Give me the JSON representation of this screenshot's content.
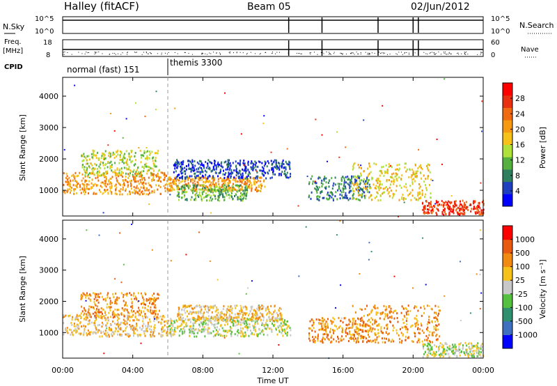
{
  "header": {
    "station": "Halley (fitACF)",
    "beam": "Beam 05",
    "date": "02/Jun/2012"
  },
  "noise_panel": {
    "left_label": "N.Sky",
    "right_label": "N.Search",
    "left_ticks": [
      "10^5",
      "10^0"
    ],
    "right_ticks": [
      "10^5",
      "10^0"
    ]
  },
  "freq_panel": {
    "left_label_1": "Freq.",
    "left_label_2": "[MHz]",
    "right_label": "Nave",
    "left_ticks": [
      "18",
      "8"
    ],
    "right_ticks": [
      "60",
      "0"
    ]
  },
  "cpid": {
    "label": "CPID",
    "modes": [
      {
        "text": "normal (fast) 151"
      },
      {
        "text": "themis 3300"
      }
    ]
  },
  "x_axis": {
    "title": "Time UT",
    "ticks": [
      "00:00",
      "04:00",
      "08:00",
      "12:00",
      "16:00",
      "20:00",
      "00:00"
    ]
  },
  "chart_data": [
    {
      "type": "heatmap",
      "quantity": "Power",
      "ylabel": "Slant Range [km]",
      "yticks": [
        "1000",
        "2000",
        "3000",
        "4000"
      ],
      "ylim": [
        180,
        4600
      ],
      "xlim_hours": [
        0,
        24
      ],
      "colorbar_label": "Power [dB]",
      "colorbar_ticks": [
        "4",
        "8",
        "12",
        "16",
        "20",
        "24",
        "28"
      ],
      "colorbar_colors": [
        "#0000ff",
        "#1f3fbf",
        "#2f7f5f",
        "#55b040",
        "#aee23a",
        "#f6c21a",
        "#f59a10",
        "#ef6a10",
        "#e83010",
        "#ff0000"
      ],
      "bands": [
        {
          "t0": 0.0,
          "t1": 6.0,
          "r0": 900,
          "r1": 1600,
          "c": 6
        },
        {
          "t0": 1.0,
          "t1": 5.5,
          "r0": 1500,
          "r1": 2300,
          "c": 4
        },
        {
          "t0": 6.0,
          "t1": 11.5,
          "r0": 1000,
          "r1": 1450,
          "c": 6
        },
        {
          "t0": 6.5,
          "t1": 10.5,
          "r0": 700,
          "r1": 1200,
          "c": 3
        },
        {
          "t0": 6.3,
          "t1": 13.0,
          "r0": 1400,
          "r1": 2000,
          "c": 1
        },
        {
          "t0": 14.0,
          "t1": 17.5,
          "r0": 700,
          "r1": 1500,
          "c": 2
        },
        {
          "t0": 16.5,
          "t1": 21.0,
          "r0": 700,
          "r1": 1900,
          "c": 5
        },
        {
          "t0": 20.5,
          "t1": 24.0,
          "r0": 250,
          "r1": 700,
          "c": 8
        }
      ]
    },
    {
      "type": "heatmap",
      "quantity": "Velocity",
      "ylabel": "Slant Range [km]",
      "yticks": [
        "1000",
        "2000",
        "3000",
        "4000"
      ],
      "ylim": [
        180,
        4600
      ],
      "xlim_hours": [
        0,
        24
      ],
      "colorbar_label": "Velocity [m s⁻¹]",
      "colorbar_ticks": [
        "1000",
        "500",
        "100",
        "25",
        "-25",
        "-100",
        "-500",
        "-1000"
      ],
      "colorbar_colors": [
        "#0000ff",
        "#3f6fbf",
        "#2f8f6f",
        "#55c040",
        "#c8c8c8",
        "#f6c21a",
        "#f08a10",
        "#e85a10",
        "#ff0000"
      ],
      "bands": [
        {
          "t0": 0.0,
          "t1": 6.0,
          "r0": 900,
          "r1": 1600,
          "c": 5
        },
        {
          "t0": 1.0,
          "t1": 5.5,
          "r0": 1500,
          "r1": 2300,
          "c": 6
        },
        {
          "t0": 6.0,
          "t1": 13.0,
          "r0": 900,
          "r1": 1500,
          "c": 4
        },
        {
          "t0": 6.5,
          "t1": 12.5,
          "r0": 1400,
          "r1": 1900,
          "c": 5
        },
        {
          "t0": 14.0,
          "t1": 18.0,
          "r0": 700,
          "r1": 1500,
          "c": 6
        },
        {
          "t0": 16.5,
          "t1": 21.5,
          "r0": 700,
          "r1": 1900,
          "c": 6
        },
        {
          "t0": 20.5,
          "t1": 24.0,
          "r0": 250,
          "r1": 700,
          "c": 4
        }
      ]
    }
  ]
}
